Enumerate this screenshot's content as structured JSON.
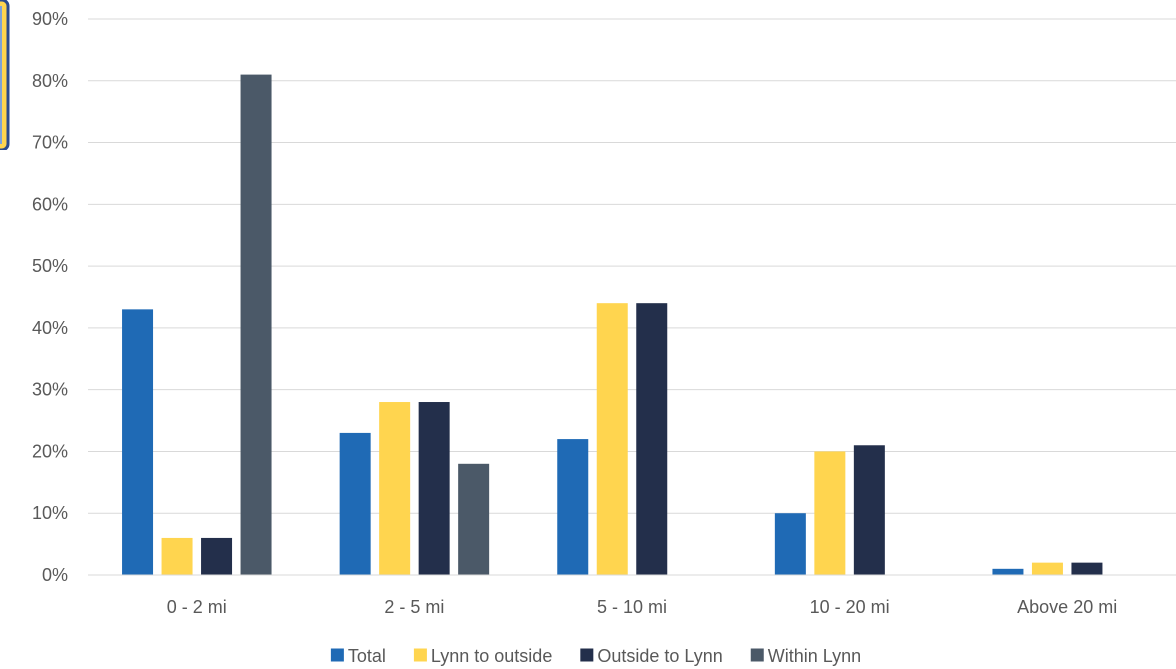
{
  "chart_data": {
    "type": "bar",
    "categories": [
      "0 - 2 mi",
      "2 - 5 mi",
      "5 - 10 mi",
      "10 - 20 mi",
      "Above 20 mi"
    ],
    "series": [
      {
        "name": "Total",
        "color": "#1f6ab5",
        "values": [
          43,
          23,
          22,
          10,
          1
        ]
      },
      {
        "name": "Lynn to outside",
        "color": "#ffd54f",
        "values": [
          6,
          28,
          44,
          20,
          2
        ]
      },
      {
        "name": "Outside to Lynn",
        "color": "#232f4b",
        "values": [
          6,
          28,
          44,
          21,
          2
        ]
      },
      {
        "name": "Within Lynn",
        "color": "#4b5968",
        "values": [
          81,
          18,
          0,
          0,
          0
        ]
      }
    ],
    "yticks": [
      "0%",
      "10%",
      "20%",
      "30%",
      "40%",
      "50%",
      "60%",
      "70%",
      "80%",
      "90%"
    ],
    "ylim": [
      0,
      90
    ],
    "title": "",
    "xlabel": "",
    "ylabel": "",
    "grid": true,
    "legend": "bottom"
  }
}
